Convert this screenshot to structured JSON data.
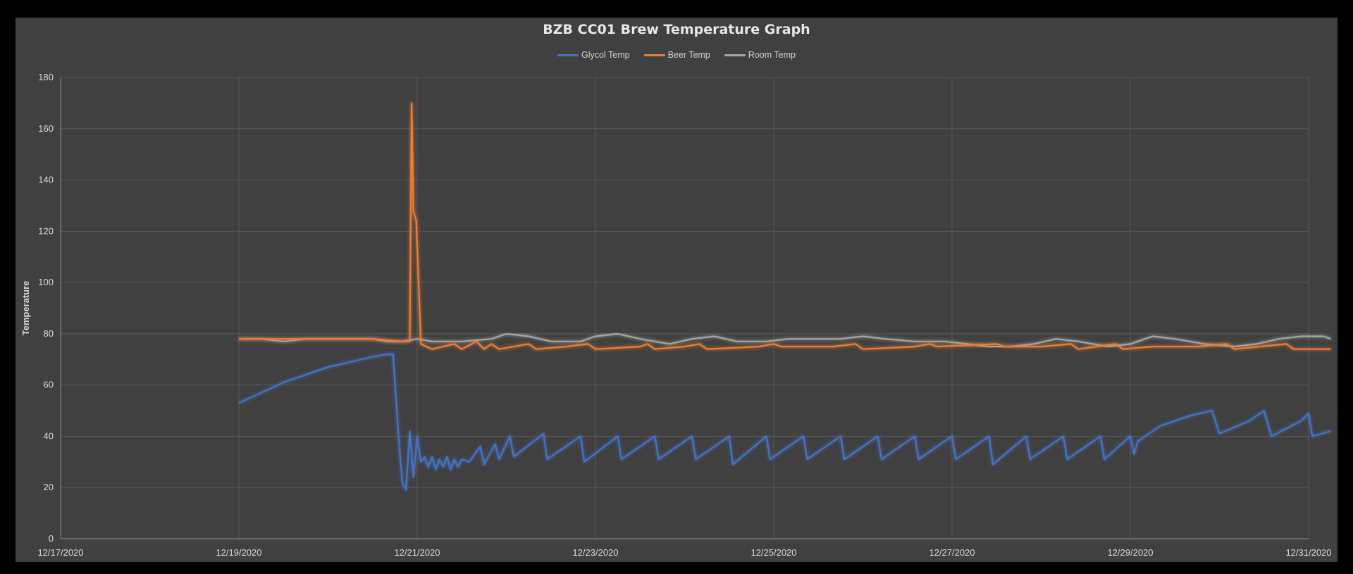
{
  "chart_data": {
    "type": "line",
    "title": "BZB CC01 Brew Temperature Graph",
    "xlabel": "",
    "ylabel": "Temperature",
    "xlim": [
      "2020-12-17",
      "2020-12-31"
    ],
    "ylim": [
      0,
      180
    ],
    "x_ticks": [
      "12/17/2020",
      "12/19/2020",
      "12/21/2020",
      "12/23/2020",
      "12/25/2020",
      "12/27/2020",
      "12/29/2020",
      "12/31/2020"
    ],
    "y_ticks": [
      0,
      20,
      40,
      60,
      80,
      100,
      120,
      140,
      160,
      180
    ],
    "grid": true,
    "legend_position": "top",
    "series": [
      {
        "name": "Glycol Temp",
        "color": "#4472c4",
        "points": [
          [
            "2020-12-19 00:00",
            53
          ],
          [
            "2020-12-19 06:00",
            57
          ],
          [
            "2020-12-19 12:00",
            61
          ],
          [
            "2020-12-19 18:00",
            64
          ],
          [
            "2020-12-20 00:00",
            67
          ],
          [
            "2020-12-20 06:00",
            69
          ],
          [
            "2020-12-20 12:00",
            71
          ],
          [
            "2020-12-20 16:00",
            72
          ],
          [
            "2020-12-20 17:30",
            72
          ],
          [
            "2020-12-20 19:00",
            40
          ],
          [
            "2020-12-20 20:00",
            22
          ],
          [
            "2020-12-20 21:00",
            19
          ],
          [
            "2020-12-20 22:00",
            42
          ],
          [
            "2020-12-20 23:00",
            24
          ],
          [
            "2020-12-21 00:00",
            40
          ],
          [
            "2020-12-21 01:00",
            30
          ],
          [
            "2020-12-21 02:00",
            32
          ],
          [
            "2020-12-21 03:00",
            28
          ],
          [
            "2020-12-21 04:00",
            32
          ],
          [
            "2020-12-21 05:00",
            27
          ],
          [
            "2020-12-21 06:00",
            31
          ],
          [
            "2020-12-21 07:00",
            28
          ],
          [
            "2020-12-21 08:00",
            32
          ],
          [
            "2020-12-21 09:00",
            27
          ],
          [
            "2020-12-21 10:00",
            31
          ],
          [
            "2020-12-21 11:00",
            28
          ],
          [
            "2020-12-21 12:00",
            31
          ],
          [
            "2020-12-21 14:00",
            30
          ],
          [
            "2020-12-21 17:00",
            36
          ],
          [
            "2020-12-21 18:00",
            29
          ],
          [
            "2020-12-21 21:00",
            37
          ],
          [
            "2020-12-21 22:00",
            31
          ],
          [
            "2020-12-22 01:00",
            40
          ],
          [
            "2020-12-22 02:00",
            32
          ],
          [
            "2020-12-22 10:00",
            41
          ],
          [
            "2020-12-22 11:00",
            31
          ],
          [
            "2020-12-22 20:00",
            40
          ],
          [
            "2020-12-22 21:00",
            30
          ],
          [
            "2020-12-23 06:00",
            40
          ],
          [
            "2020-12-23 07:00",
            31
          ],
          [
            "2020-12-23 16:00",
            40
          ],
          [
            "2020-12-23 17:00",
            31
          ],
          [
            "2020-12-24 02:00",
            40
          ],
          [
            "2020-12-24 03:00",
            31
          ],
          [
            "2020-12-24 12:00",
            40
          ],
          [
            "2020-12-24 13:00",
            29
          ],
          [
            "2020-12-24 22:00",
            40
          ],
          [
            "2020-12-24 23:00",
            31
          ],
          [
            "2020-12-25 08:00",
            40
          ],
          [
            "2020-12-25 09:00",
            31
          ],
          [
            "2020-12-25 18:00",
            40
          ],
          [
            "2020-12-25 19:00",
            31
          ],
          [
            "2020-12-26 04:00",
            40
          ],
          [
            "2020-12-26 05:00",
            31
          ],
          [
            "2020-12-26 14:00",
            40
          ],
          [
            "2020-12-26 15:00",
            31
          ],
          [
            "2020-12-27 00:00",
            40
          ],
          [
            "2020-12-27 01:00",
            31
          ],
          [
            "2020-12-27 10:00",
            40
          ],
          [
            "2020-12-27 11:00",
            29
          ],
          [
            "2020-12-27 20:00",
            40
          ],
          [
            "2020-12-27 21:00",
            31
          ],
          [
            "2020-12-28 06:00",
            40
          ],
          [
            "2020-12-28 07:00",
            31
          ],
          [
            "2020-12-28 16:00",
            40
          ],
          [
            "2020-12-28 17:00",
            31
          ],
          [
            "2020-12-29 00:00",
            40
          ],
          [
            "2020-12-29 01:00",
            33
          ],
          [
            "2020-12-29 02:00",
            38
          ],
          [
            "2020-12-29 08:00",
            44
          ],
          [
            "2020-12-29 16:00",
            48
          ],
          [
            "2020-12-29 22:00",
            50
          ],
          [
            "2020-12-30 00:00",
            41
          ],
          [
            "2020-12-30 08:00",
            46
          ],
          [
            "2020-12-30 12:00",
            50
          ],
          [
            "2020-12-30 14:00",
            40
          ],
          [
            "2020-12-30 22:00",
            46
          ],
          [
            "2020-12-31 00:00",
            49
          ],
          [
            "2020-12-31 01:00",
            40
          ],
          [
            "2020-12-31 06:00",
            42
          ]
        ]
      },
      {
        "name": "Beer Temp",
        "color": "#ed7d31",
        "points": [
          [
            "2020-12-19 00:00",
            78
          ],
          [
            "2020-12-19 12:00",
            78
          ],
          [
            "2020-12-20 00:00",
            78
          ],
          [
            "2020-12-20 12:00",
            78
          ],
          [
            "2020-12-20 20:00",
            77
          ],
          [
            "2020-12-20 22:00",
            77
          ],
          [
            "2020-12-20 22:30",
            170
          ],
          [
            "2020-12-20 23:00",
            128
          ],
          [
            "2020-12-20 23:45",
            124
          ],
          [
            "2020-12-21 01:00",
            76
          ],
          [
            "2020-12-21 04:00",
            74
          ],
          [
            "2020-12-21 10:00",
            76
          ],
          [
            "2020-12-21 12:00",
            74
          ],
          [
            "2020-12-21 16:00",
            77
          ],
          [
            "2020-12-21 18:00",
            74
          ],
          [
            "2020-12-21 20:00",
            76
          ],
          [
            "2020-12-21 22:00",
            74
          ],
          [
            "2020-12-22 06:00",
            76
          ],
          [
            "2020-12-22 08:00",
            74
          ],
          [
            "2020-12-22 16:00",
            75
          ],
          [
            "2020-12-22 22:00",
            76
          ],
          [
            "2020-12-23 00:00",
            74
          ],
          [
            "2020-12-23 12:00",
            75
          ],
          [
            "2020-12-23 14:00",
            76
          ],
          [
            "2020-12-23 16:00",
            74
          ],
          [
            "2020-12-24 00:00",
            75
          ],
          [
            "2020-12-24 04:00",
            76
          ],
          [
            "2020-12-24 06:00",
            74
          ],
          [
            "2020-12-24 20:00",
            75
          ],
          [
            "2020-12-25 00:00",
            76
          ],
          [
            "2020-12-25 02:00",
            75
          ],
          [
            "2020-12-25 16:00",
            75
          ],
          [
            "2020-12-25 22:00",
            76
          ],
          [
            "2020-12-26 00:00",
            74
          ],
          [
            "2020-12-26 14:00",
            75
          ],
          [
            "2020-12-26 18:00",
            76
          ],
          [
            "2020-12-26 20:00",
            75
          ],
          [
            "2020-12-27 12:00",
            76
          ],
          [
            "2020-12-27 14:00",
            75
          ],
          [
            "2020-12-28 00:00",
            75
          ],
          [
            "2020-12-28 08:00",
            76
          ],
          [
            "2020-12-28 10:00",
            74
          ],
          [
            "2020-12-28 20:00",
            76
          ],
          [
            "2020-12-28 22:00",
            74
          ],
          [
            "2020-12-29 06:00",
            75
          ],
          [
            "2020-12-29 18:00",
            75
          ],
          [
            "2020-12-30 02:00",
            76
          ],
          [
            "2020-12-30 04:00",
            74
          ],
          [
            "2020-12-30 18:00",
            76
          ],
          [
            "2020-12-30 20:00",
            74
          ],
          [
            "2020-12-31 06:00",
            74
          ]
        ]
      },
      {
        "name": "Room Temp",
        "color": "#a5a5a5",
        "points": [
          [
            "2020-12-19 00:00",
            78
          ],
          [
            "2020-12-19 06:00",
            78
          ],
          [
            "2020-12-19 12:00",
            77
          ],
          [
            "2020-12-19 18:00",
            78
          ],
          [
            "2020-12-20 00:00",
            78
          ],
          [
            "2020-12-20 06:00",
            78
          ],
          [
            "2020-12-20 12:00",
            78
          ],
          [
            "2020-12-20 16:00",
            77
          ],
          [
            "2020-12-20 20:00",
            77
          ],
          [
            "2020-12-21 00:00",
            78
          ],
          [
            "2020-12-21 04:00",
            77
          ],
          [
            "2020-12-21 12:00",
            77
          ],
          [
            "2020-12-21 20:00",
            78
          ],
          [
            "2020-12-22 00:00",
            80
          ],
          [
            "2020-12-22 06:00",
            79
          ],
          [
            "2020-12-22 12:00",
            77
          ],
          [
            "2020-12-22 20:00",
            77
          ],
          [
            "2020-12-23 00:00",
            79
          ],
          [
            "2020-12-23 06:00",
            80
          ],
          [
            "2020-12-23 12:00",
            78
          ],
          [
            "2020-12-23 20:00",
            76
          ],
          [
            "2020-12-24 02:00",
            78
          ],
          [
            "2020-12-24 08:00",
            79
          ],
          [
            "2020-12-24 14:00",
            77
          ],
          [
            "2020-12-24 22:00",
            77
          ],
          [
            "2020-12-25 04:00",
            78
          ],
          [
            "2020-12-25 10:00",
            78
          ],
          [
            "2020-12-25 18:00",
            78
          ],
          [
            "2020-12-26 00:00",
            79
          ],
          [
            "2020-12-26 06:00",
            78
          ],
          [
            "2020-12-26 14:00",
            77
          ],
          [
            "2020-12-26 22:00",
            77
          ],
          [
            "2020-12-27 04:00",
            76
          ],
          [
            "2020-12-27 10:00",
            75
          ],
          [
            "2020-12-27 16:00",
            75
          ],
          [
            "2020-12-27 22:00",
            76
          ],
          [
            "2020-12-28 04:00",
            78
          ],
          [
            "2020-12-28 10:00",
            77
          ],
          [
            "2020-12-28 18:00",
            75
          ],
          [
            "2020-12-29 00:00",
            76
          ],
          [
            "2020-12-29 06:00",
            79
          ],
          [
            "2020-12-29 12:00",
            78
          ],
          [
            "2020-12-29 20:00",
            76
          ],
          [
            "2020-12-30 04:00",
            75
          ],
          [
            "2020-12-30 10:00",
            76
          ],
          [
            "2020-12-30 16:00",
            78
          ],
          [
            "2020-12-30 22:00",
            79
          ],
          [
            "2020-12-31 04:00",
            79
          ],
          [
            "2020-12-31 06:00",
            78
          ]
        ]
      }
    ]
  }
}
